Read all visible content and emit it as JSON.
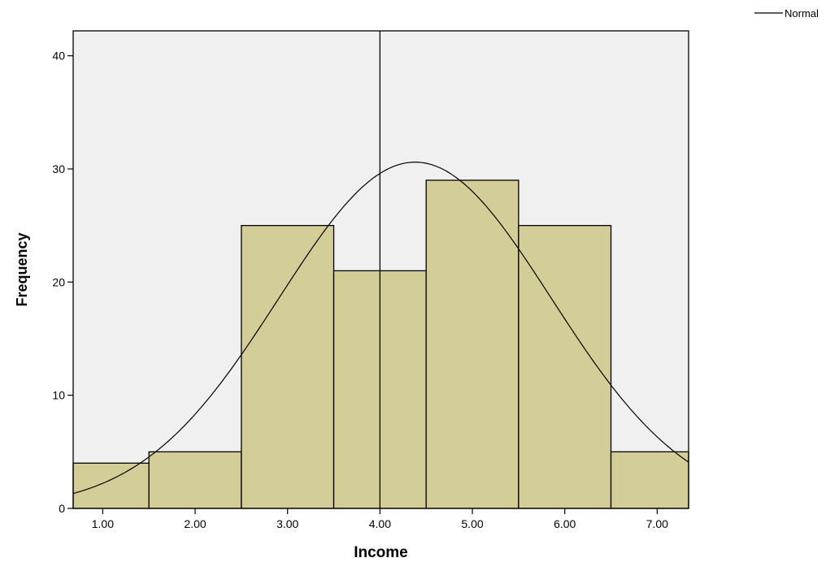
{
  "chart_data": {
    "type": "bar",
    "subtype": "histogram",
    "xlabel": "Income",
    "ylabel": "Frequency",
    "bins": [
      {
        "from": 0.5,
        "to": 1.5,
        "frequency": 4
      },
      {
        "from": 1.5,
        "to": 2.5,
        "frequency": 5
      },
      {
        "from": 2.5,
        "to": 3.5,
        "frequency": 25
      },
      {
        "from": 3.5,
        "to": 4.5,
        "frequency": 21
      },
      {
        "from": 4.5,
        "to": 5.5,
        "frequency": 29
      },
      {
        "from": 5.5,
        "to": 6.5,
        "frequency": 25
      },
      {
        "from": 6.5,
        "to": 7.5,
        "frequency": 5
      }
    ],
    "xlim": [
      0.68,
      7.34
    ],
    "ylim": [
      0,
      42.2
    ],
    "x_ticks": [
      {
        "value": 1,
        "label": "1.00"
      },
      {
        "value": 2,
        "label": "2.00"
      },
      {
        "value": 3,
        "label": "3.00"
      },
      {
        "value": 4,
        "label": "4.00"
      },
      {
        "value": 5,
        "label": "5.00"
      },
      {
        "value": 6,
        "label": "6.00"
      },
      {
        "value": 7,
        "label": "7.00"
      }
    ],
    "y_ticks": [
      {
        "value": 0,
        "label": "0"
      },
      {
        "value": 10,
        "label": "10"
      },
      {
        "value": 20,
        "label": "20"
      },
      {
        "value": 30,
        "label": "30"
      },
      {
        "value": 40,
        "label": "40"
      }
    ],
    "reference_line_x": 4.0,
    "normal_curve": {
      "name": "Normal",
      "mean": 4.38,
      "sd": 1.475,
      "peak": 30.6
    },
    "legend": {
      "label": "Normal",
      "position": "top-right"
    },
    "colors": {
      "plot_background": "#f0f0f0",
      "bar_fill": "#d3ce97",
      "bar_stroke": "#000000",
      "curve": "#000000"
    },
    "grid": false
  }
}
